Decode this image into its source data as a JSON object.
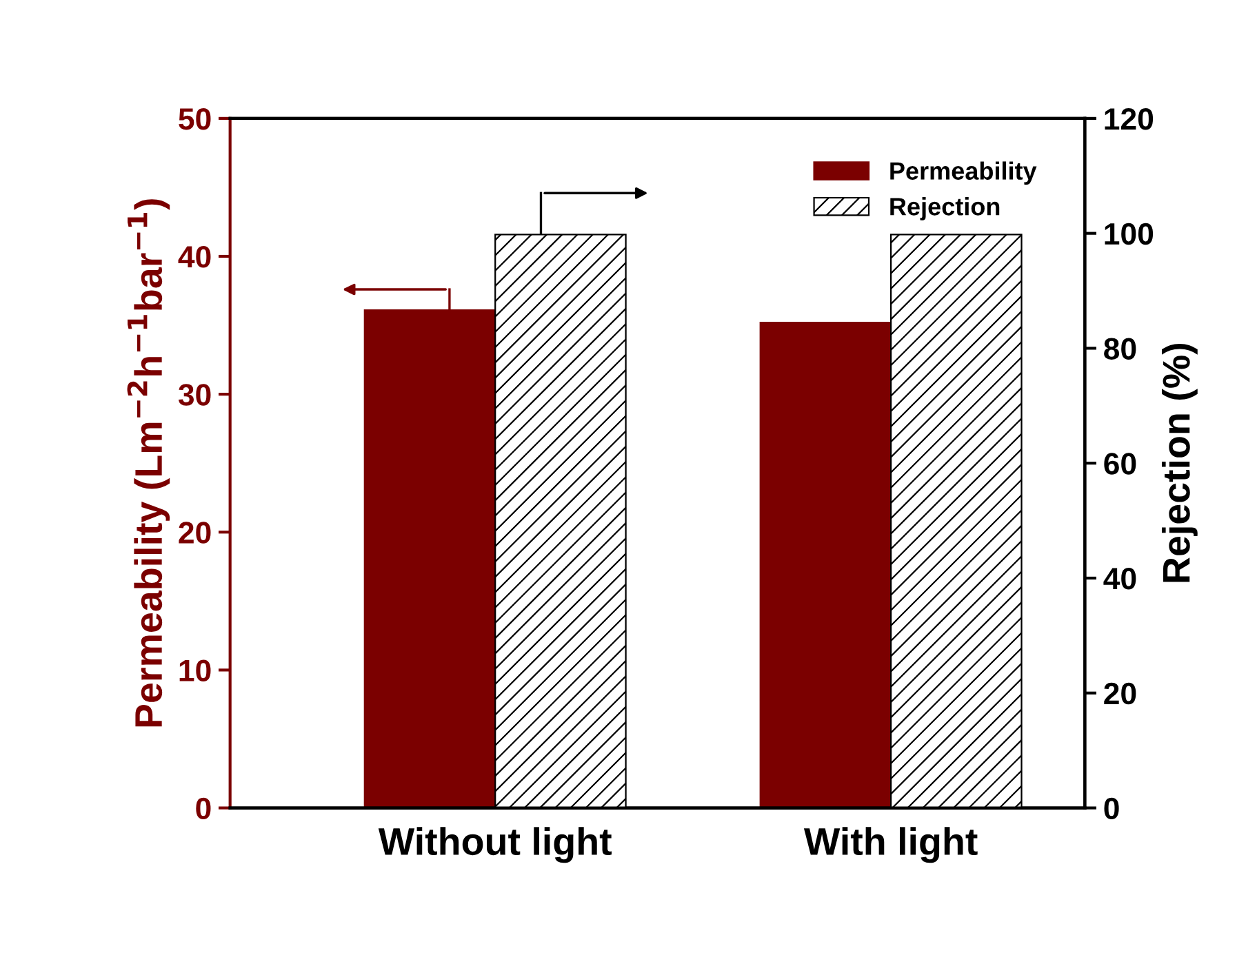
{
  "chart_data": {
    "type": "bar",
    "categories": [
      "Without light",
      "With light"
    ],
    "ylabel": "Permeability (Lm$^{−2}$h$^{−1}$bar$^{−1}$)",
    "y2label": "Rejection (%)",
    "series": [
      {
        "name": "Permeability",
        "color": "#7b0000",
        "values": [
          36.1,
          35.2
        ]
      },
      {
        "name": "Rejection",
        "color": "#000000",
        "values": [
          99.8,
          99.8
        ],
        "axis": "y2"
      }
    ],
    "ylim": [
      0,
      50
    ],
    "yticks": [
      0,
      10,
      20,
      30,
      40,
      50
    ],
    "y2lim": [
      0,
      120
    ],
    "y2ticks": [
      0,
      20,
      40,
      60,
      80,
      100,
      120
    ],
    "legend": "top right",
    "grid": false
  }
}
